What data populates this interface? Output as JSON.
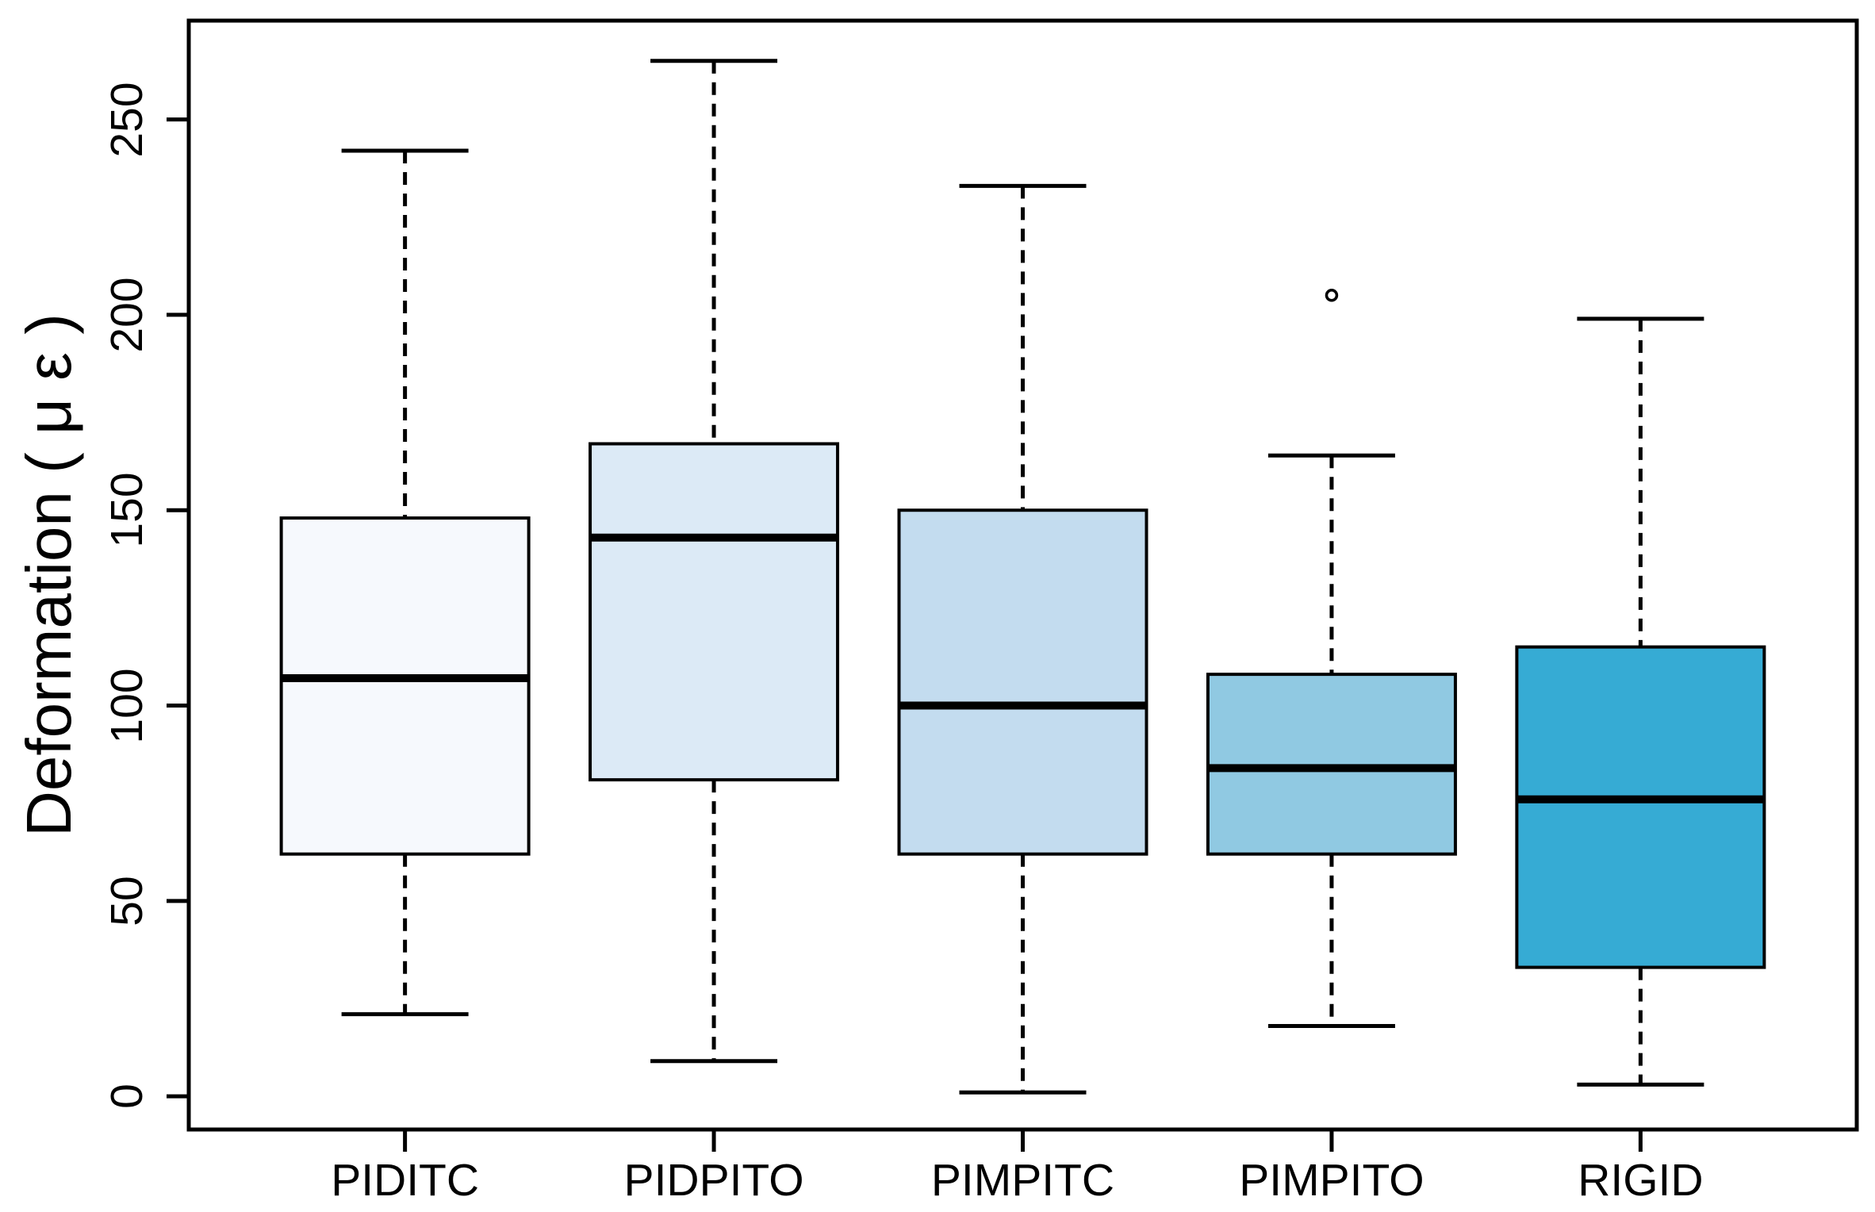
{
  "chart_data": {
    "type": "boxplot",
    "title": "",
    "xlabel": "",
    "ylabel": "Deformation ( μ ε )",
    "categories": [
      "PIDITC",
      "PIDPITO",
      "PIMPITC",
      "PIMPITO",
      "RIGID"
    ],
    "y_ticks": [
      0,
      50,
      100,
      150,
      200,
      250
    ],
    "y_tick_labels": [
      "0",
      "50",
      "100",
      "150",
      "200",
      "250"
    ],
    "ylim_displayed": [
      -8.5,
      275.3
    ],
    "grid": false,
    "legend": "none",
    "orientation": "vertical",
    "series": [
      {
        "category": "PIDITC",
        "min": 21,
        "q1": 62,
        "median": 107,
        "q3": 148,
        "max": 242,
        "outliers": [],
        "fill": "#f6f9fd"
      },
      {
        "category": "PIDPITO",
        "min": 9,
        "q1": 81,
        "median": 143,
        "q3": 167,
        "max": 265,
        "outliers": [],
        "fill": "#dceaf6"
      },
      {
        "category": "PIMPITC",
        "min": 1,
        "q1": 62,
        "median": 100,
        "q3": 150,
        "max": 233,
        "outliers": [],
        "fill": "#c3dcef"
      },
      {
        "category": "PIMPITO",
        "min": 18,
        "q1": 62,
        "median": 84,
        "q3": 108,
        "max": 164,
        "outliers": [
          205
        ],
        "fill": "#90c9e2"
      },
      {
        "category": "RIGID",
        "min": 3,
        "q1": 33,
        "median": 76,
        "q3": 115,
        "max": 199,
        "outliers": [],
        "fill": "#36abd4"
      }
    ],
    "line_color": "#000000",
    "outlier_fill": "#ffffff",
    "background": "#ffffff"
  }
}
